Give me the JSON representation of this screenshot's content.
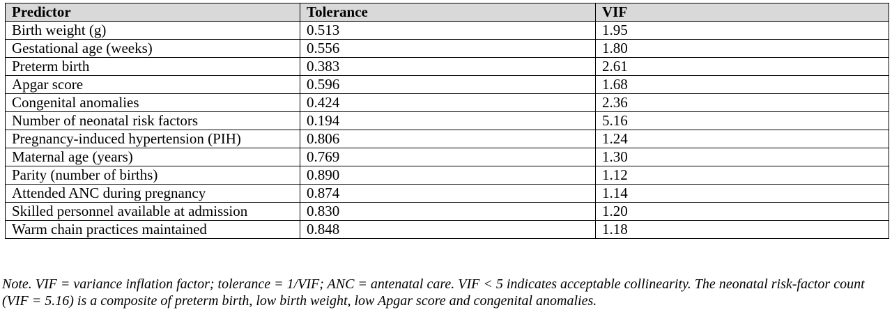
{
  "table": {
    "headers": [
      "Predictor",
      "Tolerance",
      "VIF"
    ],
    "rows": [
      [
        "Birth weight (g)",
        "0.513",
        "1.95"
      ],
      [
        "Gestational age (weeks)",
        "0.556",
        "1.80"
      ],
      [
        "Preterm birth",
        "0.383",
        "2.61"
      ],
      [
        "Apgar score",
        "0.596",
        "1.68"
      ],
      [
        "Congenital anomalies",
        "0.424",
        "2.36"
      ],
      [
        "Number of neonatal risk factors",
        "0.194",
        "5.16"
      ],
      [
        "Pregnancy-induced hypertension (PIH)",
        "0.806",
        "1.24"
      ],
      [
        "Maternal age (years)",
        "0.769",
        "1.30"
      ],
      [
        "Parity (number of births)",
        "0.890",
        "1.12"
      ],
      [
        "Attended ANC during pregnancy",
        "0.874",
        "1.14"
      ],
      [
        "Skilled personnel available at admission",
        "0.830",
        "1.20"
      ],
      [
        "Warm chain practices maintained",
        "0.848",
        "1.18"
      ]
    ]
  },
  "note": "Note. VIF = variance inflation factor; tolerance = 1/VIF; ANC = antenatal care. VIF < 5 indicates acceptable collinearity. The neonatal risk-factor count (VIF = 5.16) is a composite of preterm birth, low birth weight, low Apgar score and congenital anomalies.",
  "colors": {
    "header_background": "#d9d9d9",
    "border": "#000000",
    "text": "#000000"
  }
}
